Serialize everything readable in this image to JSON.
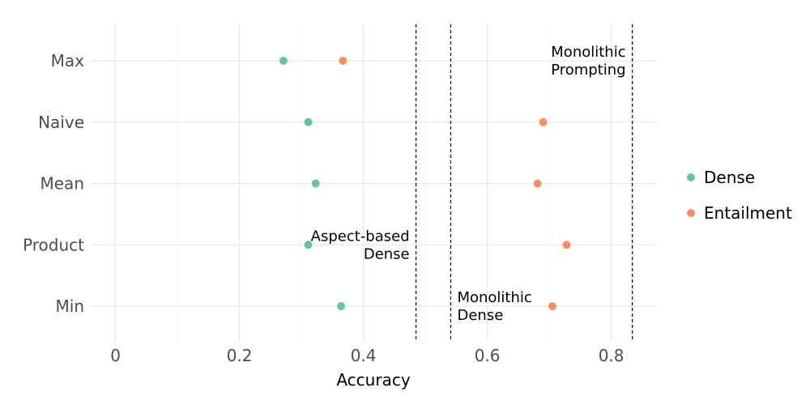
{
  "chart_data": {
    "type": "scatter",
    "xlabel": "Accuracy",
    "ylabel": "",
    "xlim": [
      -0.04,
      0.875
    ],
    "x_ticks": [
      0,
      0.2,
      0.4,
      0.6,
      0.8
    ],
    "x_tick_labels": [
      "0",
      "0.2",
      "0.4",
      "0.6",
      "0.8"
    ],
    "categories": [
      "Max",
      "Naive",
      "Mean",
      "Product",
      "Min"
    ],
    "grid": true,
    "legend_position": "right",
    "series": [
      {
        "name": "Dense",
        "color": "#66c2a5",
        "values": [
          0.271,
          0.311,
          0.323,
          0.311,
          0.364
        ]
      },
      {
        "name": "Entailment",
        "color": "#fc8d62",
        "values": [
          0.367,
          0.69,
          0.681,
          0.728,
          0.705
        ]
      }
    ],
    "reference_lines": [
      {
        "x": 0.485,
        "label_lines": [
          "Aspect-based",
          "Dense"
        ],
        "label_category": 3,
        "label_side": "left"
      },
      {
        "x": 0.541,
        "label_lines": [
          "Monolithic",
          "Dense"
        ],
        "label_category": 4,
        "label_side": "right"
      },
      {
        "x": 0.834,
        "label_lines": [
          "Monolithic",
          "Prompting"
        ],
        "label_category": 0,
        "label_side": "left"
      }
    ]
  }
}
